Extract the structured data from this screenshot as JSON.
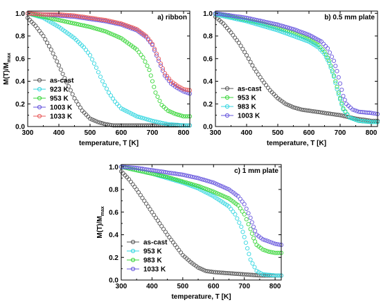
{
  "chart_data": [
    {
      "type": "scatter",
      "panel_label": "a) ribbon",
      "xlabel": "temperature, T [K]",
      "ylabel": "M(T)/M",
      "ylabel_sub": "max",
      "xlim": [
        300,
        820
      ],
      "ylim": [
        0,
        1.02
      ],
      "xticks": [
        "300",
        "400",
        "500",
        "600",
        "700",
        "800"
      ],
      "yticks": [
        "0.0",
        "0.2",
        "0.4",
        "0.6",
        "0.8",
        "1.0"
      ],
      "legend_position": "lower-left",
      "series": [
        {
          "name": "as-cast",
          "color": "#555555",
          "x": [
            300,
            325,
            350,
            375,
            400,
            425,
            450,
            475,
            500,
            525,
            550,
            575,
            600,
            650,
            700,
            750,
            800,
            820
          ],
          "y": [
            0.96,
            0.89,
            0.8,
            0.68,
            0.54,
            0.39,
            0.25,
            0.14,
            0.07,
            0.04,
            0.02,
            0.01,
            0.01,
            0.01,
            0.01,
            0.01,
            0.01,
            0.01
          ]
        },
        {
          "name": "923 K",
          "color": "#33d6e0",
          "x": [
            300,
            350,
            400,
            450,
            480,
            500,
            520,
            540,
            560,
            580,
            600,
            650,
            700,
            750,
            800,
            820
          ],
          "y": [
            1.0,
            0.96,
            0.88,
            0.78,
            0.7,
            0.63,
            0.52,
            0.4,
            0.3,
            0.22,
            0.16,
            0.09,
            0.05,
            0.02,
            0.01,
            0.01
          ]
        },
        {
          "name": "953 K",
          "color": "#3ad63a",
          "x": [
            300,
            350,
            400,
            450,
            500,
            550,
            600,
            650,
            670,
            690,
            700,
            710,
            730,
            750,
            775,
            800,
            820
          ],
          "y": [
            1.0,
            0.97,
            0.94,
            0.91,
            0.88,
            0.84,
            0.78,
            0.68,
            0.61,
            0.5,
            0.4,
            0.3,
            0.19,
            0.14,
            0.11,
            0.09,
            0.09
          ]
        },
        {
          "name": "1003 K",
          "color": "#6655dd",
          "x": [
            300,
            350,
            400,
            450,
            500,
            550,
            600,
            650,
            680,
            700,
            720,
            740,
            760,
            780,
            800,
            820
          ],
          "y": [
            1.0,
            0.99,
            0.98,
            0.97,
            0.95,
            0.93,
            0.9,
            0.85,
            0.79,
            0.72,
            0.58,
            0.45,
            0.38,
            0.34,
            0.31,
            0.29
          ]
        },
        {
          "name": "1033 K",
          "color": "#e85a5a",
          "x": [
            300,
            350,
            400,
            450,
            500,
            550,
            600,
            650,
            680,
            700,
            720,
            740,
            760,
            780,
            800,
            820
          ],
          "y": [
            1.0,
            0.99,
            0.99,
            0.98,
            0.96,
            0.94,
            0.91,
            0.86,
            0.8,
            0.73,
            0.6,
            0.47,
            0.4,
            0.36,
            0.33,
            0.32
          ]
        }
      ]
    },
    {
      "type": "scatter",
      "panel_label": "b) 0.5 mm plate",
      "xlabel": "temperature, T [K]",
      "ylabel": "",
      "ylabel_sub": "",
      "xlim": [
        300,
        820
      ],
      "ylim": [
        0,
        1.02
      ],
      "xticks": [
        "300",
        "400",
        "500",
        "600",
        "700",
        "800"
      ],
      "yticks": [
        "0.0",
        "0.2",
        "0.4",
        "0.6",
        "0.8",
        "1.0"
      ],
      "legend_position": "lower-left",
      "series": [
        {
          "name": "as-cast",
          "color": "#555555",
          "x": [
            300,
            325,
            350,
            375,
            400,
            425,
            450,
            475,
            500,
            525,
            550,
            575,
            600,
            650,
            700,
            750,
            800,
            820
          ],
          "y": [
            0.97,
            0.91,
            0.83,
            0.74,
            0.63,
            0.51,
            0.41,
            0.32,
            0.25,
            0.2,
            0.17,
            0.15,
            0.14,
            0.12,
            0.1,
            0.07,
            0.05,
            0.05
          ]
        },
        {
          "name": "953 K",
          "color": "#3ad63a",
          "x": [
            300,
            350,
            400,
            450,
            500,
            550,
            600,
            630,
            650,
            665,
            680,
            690,
            700,
            710,
            730,
            760,
            800,
            820
          ],
          "y": [
            1.0,
            0.97,
            0.94,
            0.91,
            0.87,
            0.83,
            0.77,
            0.72,
            0.66,
            0.58,
            0.45,
            0.35,
            0.25,
            0.16,
            0.08,
            0.05,
            0.04,
            0.04
          ]
        },
        {
          "name": "983 K",
          "color": "#33d6e0",
          "x": [
            300,
            350,
            400,
            450,
            500,
            550,
            600,
            630,
            650,
            665,
            680,
            690,
            700,
            710,
            730,
            760,
            800,
            820
          ],
          "y": [
            0.99,
            0.96,
            0.93,
            0.89,
            0.85,
            0.8,
            0.75,
            0.7,
            0.64,
            0.56,
            0.44,
            0.33,
            0.24,
            0.15,
            0.08,
            0.05,
            0.04,
            0.04
          ]
        },
        {
          "name": "1003 K",
          "color": "#6655dd",
          "x": [
            300,
            350,
            400,
            450,
            500,
            550,
            600,
            640,
            660,
            680,
            690,
            700,
            710,
            720,
            740,
            760,
            800,
            820
          ],
          "y": [
            1.0,
            0.98,
            0.96,
            0.93,
            0.9,
            0.86,
            0.81,
            0.75,
            0.69,
            0.58,
            0.49,
            0.38,
            0.27,
            0.2,
            0.15,
            0.13,
            0.12,
            0.11
          ]
        }
      ]
    },
    {
      "type": "scatter",
      "panel_label": "c) 1 mm plate",
      "xlabel": "temperature, T [K]",
      "ylabel": "M(T)/M",
      "ylabel_sub": "max",
      "xlim": [
        300,
        820
      ],
      "ylim": [
        0,
        1.02
      ],
      "xticks": [
        "300",
        "400",
        "500",
        "600",
        "700",
        "800"
      ],
      "yticks": [
        "0.0",
        "0.2",
        "0.4",
        "0.6",
        "0.8",
        "1.0"
      ],
      "legend_position": "lower-left",
      "series": [
        {
          "name": "as-cast",
          "color": "#555555",
          "x": [
            300,
            325,
            350,
            375,
            400,
            425,
            450,
            475,
            500,
            525,
            550,
            575,
            600,
            650,
            700,
            750,
            800,
            820
          ],
          "y": [
            0.96,
            0.89,
            0.8,
            0.7,
            0.6,
            0.5,
            0.4,
            0.31,
            0.22,
            0.16,
            0.11,
            0.08,
            0.07,
            0.06,
            0.05,
            0.04,
            0.04,
            0.04
          ]
        },
        {
          "name": "953 K",
          "color": "#33d6e0",
          "x": [
            300,
            350,
            400,
            450,
            500,
            550,
            600,
            650,
            670,
            690,
            700,
            710,
            720,
            740,
            760,
            800,
            820
          ],
          "y": [
            1.0,
            0.97,
            0.94,
            0.9,
            0.86,
            0.81,
            0.74,
            0.65,
            0.58,
            0.47,
            0.38,
            0.28,
            0.18,
            0.08,
            0.05,
            0.04,
            0.04
          ]
        },
        {
          "name": "983 K",
          "color": "#3ad63a",
          "x": [
            300,
            350,
            400,
            450,
            500,
            550,
            600,
            650,
            680,
            700,
            720,
            730,
            740,
            760,
            780,
            800,
            820
          ],
          "y": [
            1.0,
            0.97,
            0.94,
            0.91,
            0.87,
            0.83,
            0.78,
            0.72,
            0.66,
            0.58,
            0.45,
            0.37,
            0.31,
            0.27,
            0.25,
            0.24,
            0.24
          ]
        },
        {
          "name": "1033 K",
          "color": "#6655dd",
          "x": [
            300,
            350,
            400,
            450,
            500,
            550,
            600,
            650,
            680,
            700,
            720,
            730,
            740,
            760,
            780,
            800,
            820
          ],
          "y": [
            1.0,
            0.99,
            0.97,
            0.95,
            0.93,
            0.9,
            0.86,
            0.8,
            0.74,
            0.67,
            0.55,
            0.47,
            0.4,
            0.36,
            0.34,
            0.32,
            0.31
          ]
        }
      ]
    }
  ]
}
